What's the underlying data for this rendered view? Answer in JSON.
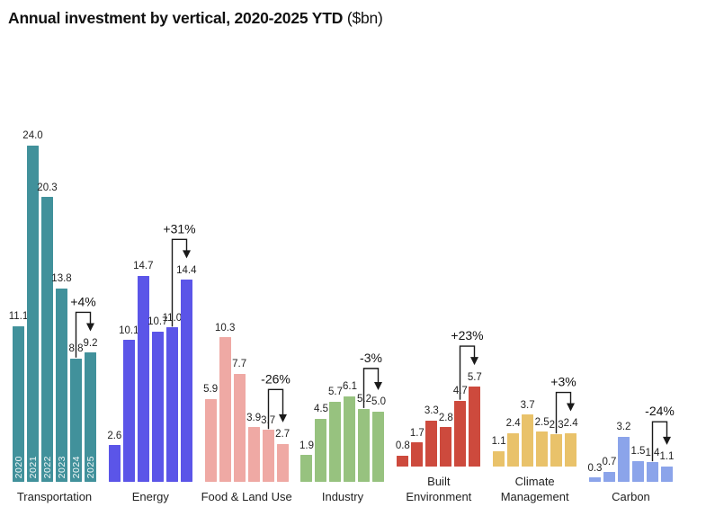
{
  "title": {
    "main": "Annual investment by vertical, 2020-2025 YTD",
    "unit": " ($bn)"
  },
  "chart_data": {
    "type": "bar",
    "title": "Annual investment by vertical, 2020-2025 YTD ($bn)",
    "unit": "$bn",
    "years": [
      "2020",
      "2021",
      "2022",
      "2023",
      "2024",
      "2025"
    ],
    "ylim": [
      0,
      24
    ],
    "grid": false,
    "legend": "none",
    "value_labels": true,
    "annotation_style": "bracket arrow over last two bars showing 2024 to 2025 percent change",
    "groups": [
      {
        "label": "Transportation",
        "color": "#41919b",
        "values": [
          11.1,
          24.0,
          20.3,
          13.8,
          8.8,
          9.2
        ],
        "change": "+4%",
        "show_years": true
      },
      {
        "label": "Energy",
        "color": "#5b55e8",
        "values": [
          2.6,
          10.1,
          14.7,
          10.7,
          11.0,
          14.4
        ],
        "change": "+31%",
        "show_years": false
      },
      {
        "label": "Food & Land Use",
        "color": "#efa9a4",
        "values": [
          5.9,
          10.3,
          7.7,
          3.9,
          3.7,
          2.7
        ],
        "change": "-26%",
        "show_years": false
      },
      {
        "label": "Industry",
        "color": "#97c27f",
        "values": [
          1.9,
          4.5,
          5.7,
          6.1,
          5.2,
          5.0
        ],
        "change": "-3%",
        "show_years": false
      },
      {
        "label": "Built\nEnvironment",
        "color": "#cd4a3d",
        "values": [
          0.8,
          1.7,
          3.3,
          2.8,
          4.7,
          5.7
        ],
        "change": "+23%",
        "show_years": false
      },
      {
        "label": "Climate\nManagement",
        "color": "#e9c26a",
        "values": [
          1.1,
          2.4,
          3.7,
          2.5,
          2.3,
          2.4
        ],
        "change": "+3%",
        "show_years": false
      },
      {
        "label": "Carbon",
        "color": "#8ba4ea",
        "values": [
          0.3,
          0.7,
          3.2,
          1.5,
          1.4,
          1.1
        ],
        "change": "-24%",
        "show_years": false
      }
    ]
  }
}
